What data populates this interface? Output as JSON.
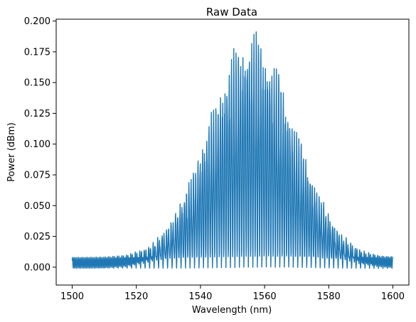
{
  "chart_data": {
    "type": "line",
    "title": "Raw Data",
    "xlabel": "Wavelength (nm)",
    "ylabel": "Power (dBm)",
    "xlim": [
      1495,
      1605
    ],
    "ylim": [
      -0.0145,
      0.2015
    ],
    "xticks": [
      1500,
      1520,
      1540,
      1560,
      1580,
      1600
    ],
    "xtick_labels": [
      "1500",
      "1520",
      "1540",
      "1560",
      "1580",
      "1600"
    ],
    "yticks": [
      0.0,
      0.025,
      0.05,
      0.075,
      0.1,
      0.125,
      0.15,
      0.175,
      0.2
    ],
    "ytick_labels": [
      "0.000",
      "0.025",
      "0.050",
      "0.075",
      "0.100",
      "0.125",
      "0.150",
      "0.175",
      "0.200"
    ],
    "grid": false,
    "series": [
      {
        "color": "#1f77b4",
        "description_of_shape": "dense oscillating fringes under a Gaussian envelope",
        "envelope_center": 1556,
        "envelope_sigma": 13.5,
        "peak_max": 0.19,
        "floor_min": -0.001,
        "floor_max": 0.008,
        "fringe_period": 0.7,
        "x_range": [
          1500,
          1600
        ]
      }
    ]
  }
}
